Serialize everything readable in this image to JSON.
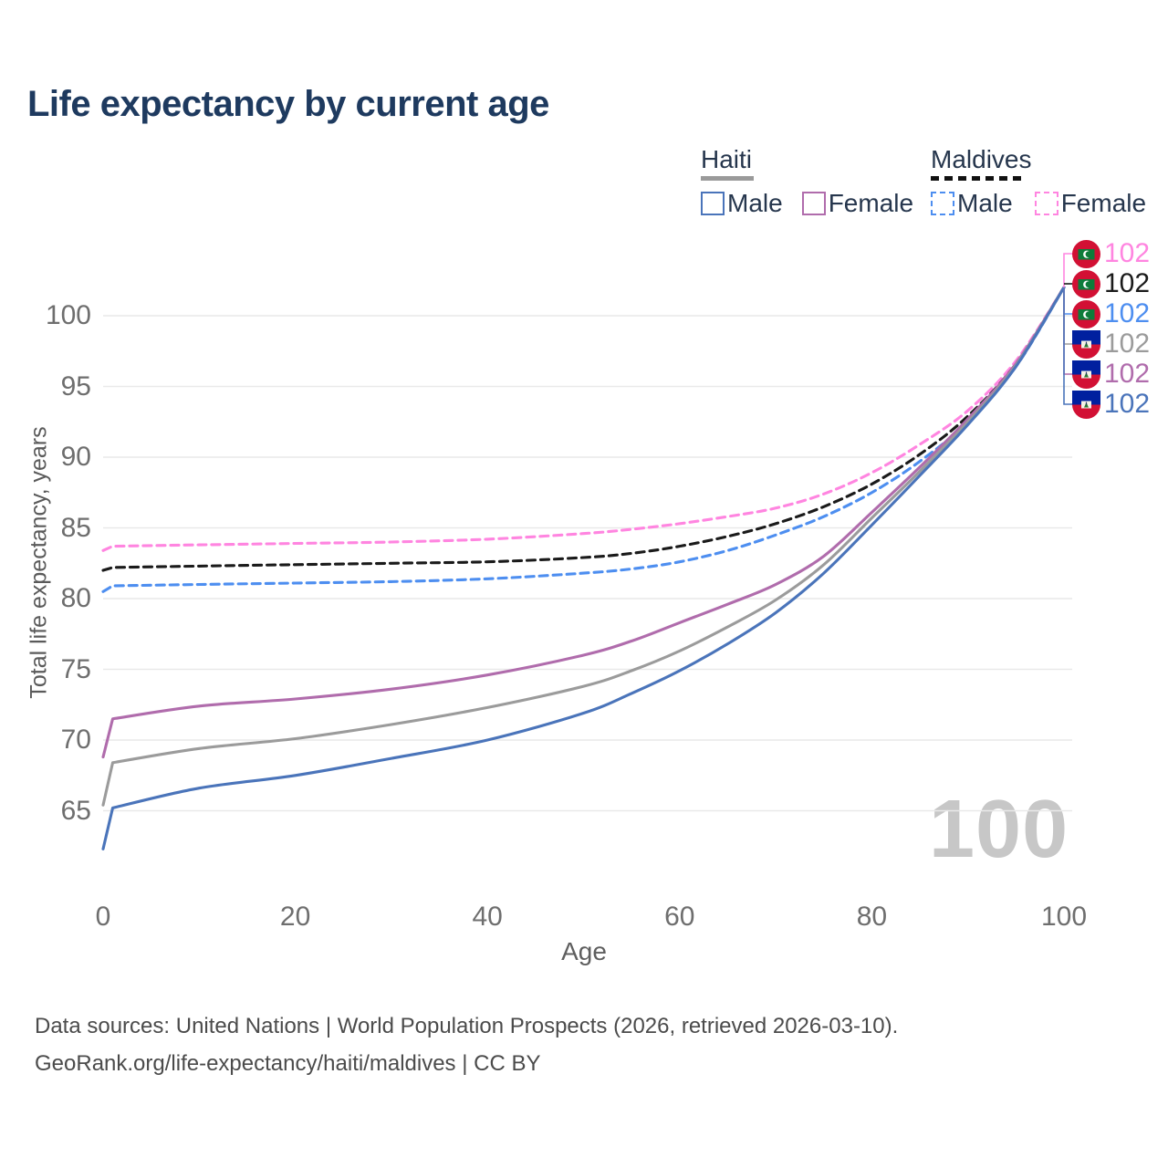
{
  "title": "Life expectancy by current age",
  "legend": {
    "groups": [
      {
        "id": "haiti",
        "label": "Haiti",
        "line_style": "solid",
        "underline_color": "#9a9a9a",
        "items": [
          {
            "id": "haiti_male",
            "label": "Male",
            "color": "#4a74ba",
            "dashed": false
          },
          {
            "id": "haiti_female",
            "label": "Female",
            "color": "#b06cac",
            "dashed": false
          }
        ]
      },
      {
        "id": "maldives",
        "label": "Maldives",
        "line_style": "dashed",
        "underline_color": "#111111",
        "items": [
          {
            "id": "maldives_male",
            "label": "Male",
            "color": "#4d8ef0",
            "dashed": true
          },
          {
            "id": "maldives_female",
            "label": "Female",
            "color": "#ff85e0",
            "dashed": true
          }
        ]
      }
    ]
  },
  "watermark": "100",
  "end_labels": [
    {
      "series": "maldives_female",
      "flag": "maldives",
      "value": "102",
      "color": "#ff85e0"
    },
    {
      "series": "maldives_total",
      "flag": "maldives",
      "value": "102",
      "color": "#1a1a1a"
    },
    {
      "series": "maldives_male",
      "flag": "maldives",
      "value": "102",
      "color": "#4d8ef0"
    },
    {
      "series": "haiti_total",
      "flag": "haiti",
      "value": "102",
      "color": "#9b9b9b"
    },
    {
      "series": "haiti_female",
      "flag": "haiti",
      "value": "102",
      "color": "#b06cac"
    },
    {
      "series": "haiti_male",
      "flag": "haiti",
      "value": "102",
      "color": "#4a74ba"
    }
  ],
  "footer": {
    "line1": "Data sources: United Nations | World Population Prospects (2026, retrieved 2026-03-10).",
    "line2": "GeoRank.org/life-expectancy/haiti/maldives | CC BY"
  },
  "colors": {
    "title": "#1e3a5f",
    "legend_text": "#26364d",
    "tick_text": "#6e6e6e",
    "grid": "#e9e9e9",
    "watermark": "#c7c7c7",
    "footer_text": "#4b4b4b"
  },
  "chart_data": {
    "type": "line",
    "title": "Life expectancy by current age",
    "xlabel": "Age",
    "ylabel": "Total life expectancy, years",
    "x_ticks": [
      0,
      20,
      40,
      60,
      80,
      100
    ],
    "y_ticks": [
      65,
      70,
      75,
      80,
      85,
      90,
      95,
      100
    ],
    "xlim": [
      0,
      100
    ],
    "ylim": [
      62,
      103
    ],
    "grid": "horizontal",
    "legend_position": "top-right",
    "x": [
      0,
      1,
      10,
      20,
      30,
      40,
      50,
      55,
      60,
      65,
      70,
      75,
      80,
      85,
      90,
      95,
      100
    ],
    "series": [
      {
        "id": "maldives_female",
        "name": "Maldives Female",
        "color": "#ff85e0",
        "dashed": true,
        "values": [
          83.4,
          83.7,
          83.8,
          83.9,
          84.0,
          84.2,
          84.6,
          84.9,
          85.3,
          85.8,
          86.4,
          87.4,
          88.9,
          90.9,
          93.3,
          96.8,
          102
        ]
      },
      {
        "id": "maldives_total",
        "name": "Maldives Both sexes",
        "color": "#1a1a1a",
        "dashed": true,
        "values": [
          82.0,
          82.2,
          82.3,
          82.4,
          82.5,
          82.6,
          82.9,
          83.2,
          83.7,
          84.4,
          85.3,
          86.5,
          88.1,
          90.2,
          92.9,
          96.6,
          102
        ]
      },
      {
        "id": "maldives_male",
        "name": "Maldives Male",
        "color": "#4d8ef0",
        "dashed": true,
        "values": [
          80.5,
          80.9,
          81.0,
          81.1,
          81.2,
          81.4,
          81.8,
          82.1,
          82.6,
          83.4,
          84.5,
          85.8,
          87.5,
          89.7,
          92.5,
          96.4,
          102
        ]
      },
      {
        "id": "haiti_female",
        "name": "Haiti Female",
        "color": "#b06cac",
        "dashed": false,
        "values": [
          68.8,
          71.5,
          72.4,
          72.9,
          73.6,
          74.6,
          76.0,
          77.0,
          78.3,
          79.6,
          81.0,
          83.0,
          86.1,
          89.3,
          92.7,
          96.6,
          102
        ]
      },
      {
        "id": "haiti_total",
        "name": "Haiti Both sexes",
        "color": "#9b9b9b",
        "dashed": false,
        "values": [
          65.4,
          68.4,
          69.4,
          70.1,
          71.1,
          72.3,
          73.8,
          74.9,
          76.3,
          78.0,
          79.9,
          82.4,
          85.7,
          89.0,
          92.5,
          96.5,
          102
        ]
      },
      {
        "id": "haiti_male",
        "name": "Haiti Male",
        "color": "#4a74ba",
        "dashed": false,
        "values": [
          62.3,
          65.2,
          66.6,
          67.5,
          68.7,
          70.0,
          71.9,
          73.3,
          74.9,
          76.8,
          79.0,
          81.8,
          85.2,
          88.7,
          92.3,
          96.4,
          102
        ]
      }
    ],
    "end_value_label": "102"
  }
}
